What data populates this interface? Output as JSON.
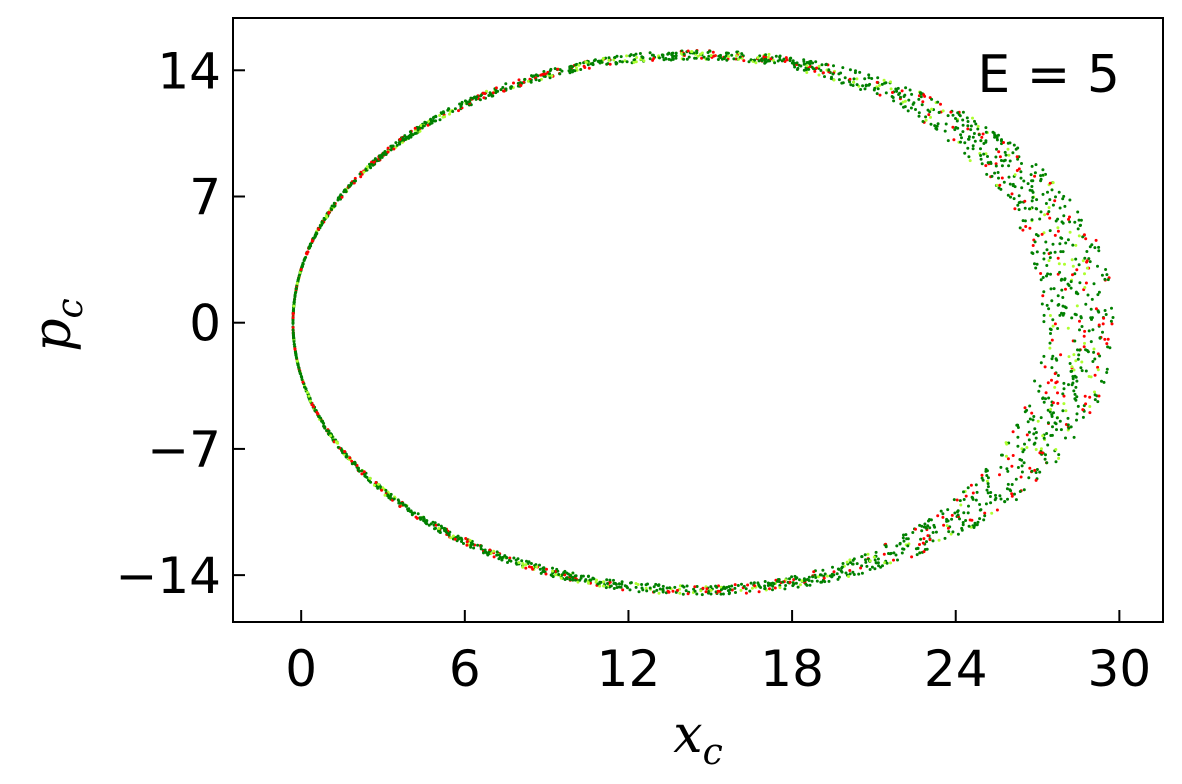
{
  "chart_data": {
    "type": "scatter",
    "xlabel": "x_c",
    "ylabel": "p_c",
    "annotation": "E = 5",
    "xlim": [
      -2.5,
      31.6
    ],
    "ylim": [
      -16.6,
      16.9
    ],
    "xticks": [
      0,
      6,
      12,
      18,
      24,
      30
    ],
    "yticks": [
      14,
      7,
      0,
      -7,
      -14
    ],
    "ytick_labels": [
      "14",
      "7",
      "0",
      "−7",
      "−14"
    ],
    "grid": false,
    "series_colors": [
      "#008000",
      "#ff0000",
      "#adff2f"
    ],
    "inner_curve": {
      "cx": 14.6,
      "rx_left": 14.9,
      "rx_right": 12.6,
      "ry": 14.6
    },
    "outer_curve": {
      "cx": 14.6,
      "rx_left": 14.9,
      "rx_right": 15.3,
      "ry": 15.1
    }
  }
}
